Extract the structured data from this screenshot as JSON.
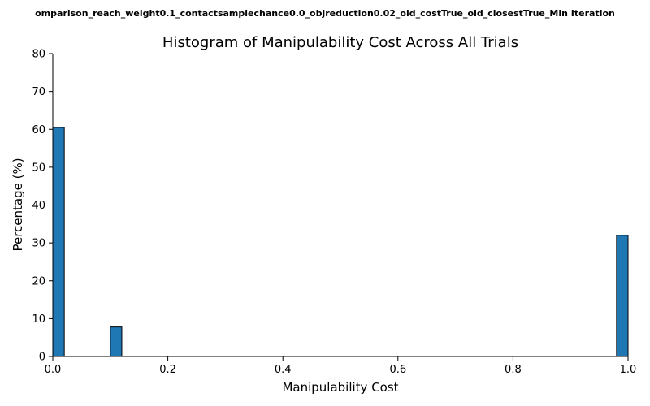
{
  "suptitle": "omparison_reach_weight0.1_contactsamplechance0.0_objreduction0.02_old_costTrue_old_closestTrue_Min Iteration",
  "chart_data": {
    "type": "bar",
    "title": "Histogram of Manipulability Cost Across All Trials",
    "xlabel": "Manipulability Cost",
    "ylabel": "Percentage (%)",
    "xlim": [
      0.0,
      1.0
    ],
    "ylim": [
      0,
      80
    ],
    "xticks": [
      0.0,
      0.2,
      0.4,
      0.6,
      0.8,
      1.0
    ],
    "xtick_labels": [
      "0.0",
      "0.2",
      "0.4",
      "0.6",
      "0.8",
      "1.0"
    ],
    "yticks": [
      0,
      10,
      20,
      30,
      40,
      50,
      60,
      70,
      80
    ],
    "ytick_labels": [
      "0",
      "10",
      "20",
      "30",
      "40",
      "50",
      "60",
      "70",
      "80"
    ],
    "bin_width": 0.02,
    "bins": [
      {
        "x_start": 0.0,
        "value": 60.5
      },
      {
        "x_start": 0.1,
        "value": 7.8
      },
      {
        "x_start": 0.98,
        "value": 32.0
      }
    ],
    "grid": false,
    "colors": {
      "bar": "#1f77b4",
      "edge": "#000000"
    }
  }
}
